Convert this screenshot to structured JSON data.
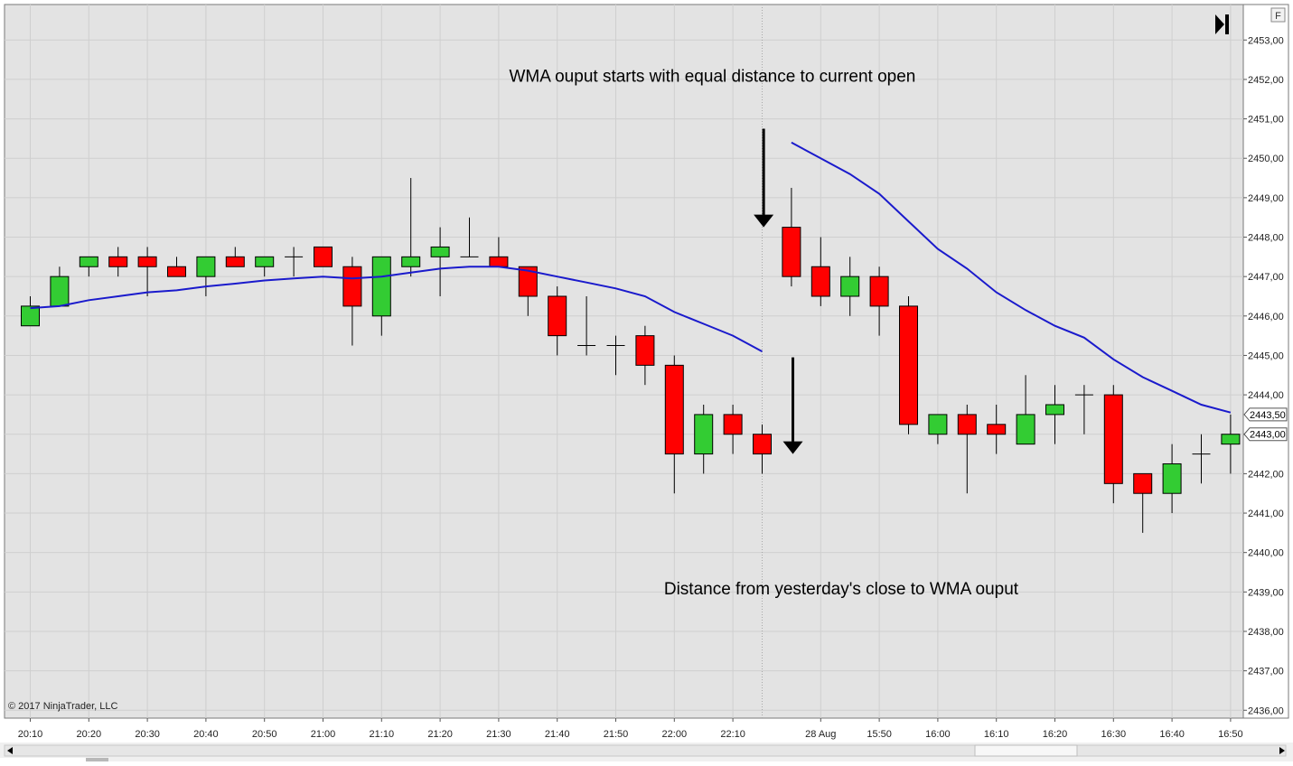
{
  "chart_data": {
    "type": "candlestick",
    "indicator_name": "WMA",
    "copyright": "© 2017 NinjaTrader, LLC",
    "panel_button": "F",
    "y_ticks": [
      "2436,00",
      "2437,00",
      "2438,00",
      "2439,00",
      "2440,00",
      "2441,00",
      "2442,00",
      "2443,00",
      "2444,00",
      "2445,00",
      "2446,00",
      "2447,00",
      "2448,00",
      "2449,00",
      "2450,00",
      "2451,00",
      "2452,00",
      "2453,00"
    ],
    "ylim": [
      2435.8,
      2453.9
    ],
    "x_tick_labels": [
      {
        "label": "20:10",
        "bar": 0
      },
      {
        "label": "20:20",
        "bar": 2
      },
      {
        "label": "20:30",
        "bar": 4
      },
      {
        "label": "20:40",
        "bar": 6
      },
      {
        "label": "20:50",
        "bar": 8
      },
      {
        "label": "21:00",
        "bar": 10
      },
      {
        "label": "21:10",
        "bar": 12
      },
      {
        "label": "21:20",
        "bar": 14
      },
      {
        "label": "21:30",
        "bar": 16
      },
      {
        "label": "21:40",
        "bar": 18
      },
      {
        "label": "21:50",
        "bar": 20
      },
      {
        "label": "22:00",
        "bar": 22
      },
      {
        "label": "22:10",
        "bar": 24
      },
      {
        "label": "28 Aug",
        "bar": 27
      },
      {
        "label": "15:50",
        "bar": 29
      },
      {
        "label": "16:00",
        "bar": 31
      },
      {
        "label": "16:10",
        "bar": 33
      },
      {
        "label": "16:20",
        "bar": 35
      },
      {
        "label": "16:30",
        "bar": 37
      },
      {
        "label": "16:40",
        "bar": 39
      },
      {
        "label": "16:50",
        "bar": 41
      }
    ],
    "session_break_bar": 25,
    "candles": [
      {
        "open": 2445.75,
        "high": 2446.5,
        "low": 2445.75,
        "close": 2446.25
      },
      {
        "open": 2446.25,
        "high": 2447.25,
        "low": 2446.25,
        "close": 2447.0
      },
      {
        "open": 2447.25,
        "high": 2447.5,
        "low": 2447.0,
        "close": 2447.5
      },
      {
        "open": 2447.5,
        "high": 2447.75,
        "low": 2447.0,
        "close": 2447.25
      },
      {
        "open": 2447.5,
        "high": 2447.75,
        "low": 2446.5,
        "close": 2447.25
      },
      {
        "open": 2447.25,
        "high": 2447.5,
        "low": 2447.0,
        "close": 2447.0
      },
      {
        "open": 2447.0,
        "high": 2447.5,
        "low": 2446.5,
        "close": 2447.5
      },
      {
        "open": 2447.5,
        "high": 2447.75,
        "low": 2447.25,
        "close": 2447.25
      },
      {
        "open": 2447.25,
        "high": 2447.5,
        "low": 2447.0,
        "close": 2447.5
      },
      {
        "open": 2447.5,
        "high": 2447.75,
        "low": 2447.0,
        "close": 2447.5
      },
      {
        "open": 2447.75,
        "high": 2447.75,
        "low": 2447.25,
        "close": 2447.25
      },
      {
        "open": 2447.25,
        "high": 2447.5,
        "low": 2445.25,
        "close": 2446.25
      },
      {
        "open": 2446.0,
        "high": 2447.5,
        "low": 2445.5,
        "close": 2447.5
      },
      {
        "open": 2447.25,
        "high": 2449.5,
        "low": 2447.0,
        "close": 2447.5
      },
      {
        "open": 2447.5,
        "high": 2448.25,
        "low": 2446.5,
        "close": 2447.75
      },
      {
        "open": 2447.5,
        "high": 2448.5,
        "low": 2447.5,
        "close": 2447.5
      },
      {
        "open": 2447.5,
        "high": 2448.0,
        "low": 2447.25,
        "close": 2447.25
      },
      {
        "open": 2447.25,
        "high": 2447.25,
        "low": 2446.0,
        "close": 2446.5
      },
      {
        "open": 2446.5,
        "high": 2446.75,
        "low": 2445.0,
        "close": 2445.5
      },
      {
        "open": 2445.25,
        "high": 2446.5,
        "low": 2445.0,
        "close": 2445.25
      },
      {
        "open": 2445.25,
        "high": 2445.5,
        "low": 2444.5,
        "close": 2445.25
      },
      {
        "open": 2445.5,
        "high": 2445.75,
        "low": 2444.25,
        "close": 2444.75
      },
      {
        "open": 2444.75,
        "high": 2445.0,
        "low": 2441.5,
        "close": 2442.5
      },
      {
        "open": 2442.5,
        "high": 2443.75,
        "low": 2442.0,
        "close": 2443.5
      },
      {
        "open": 2443.5,
        "high": 2443.75,
        "low": 2442.5,
        "close": 2443.0
      },
      {
        "open": 2443.0,
        "high": 2443.25,
        "low": 2442.0,
        "close": 2442.5
      },
      {
        "open": 2448.25,
        "high": 2449.25,
        "low": 2446.75,
        "close": 2447.0
      },
      {
        "open": 2447.25,
        "high": 2448.0,
        "low": 2446.25,
        "close": 2446.5
      },
      {
        "open": 2446.5,
        "high": 2447.5,
        "low": 2446.0,
        "close": 2447.0
      },
      {
        "open": 2447.0,
        "high": 2447.25,
        "low": 2445.5,
        "close": 2446.25
      },
      {
        "open": 2446.25,
        "high": 2446.5,
        "low": 2443.0,
        "close": 2443.25
      },
      {
        "open": 2443.0,
        "high": 2443.5,
        "low": 2442.75,
        "close": 2443.5
      },
      {
        "open": 2443.5,
        "high": 2443.75,
        "low": 2441.5,
        "close": 2443.0
      },
      {
        "open": 2443.25,
        "high": 2443.75,
        "low": 2442.5,
        "close": 2443.0
      },
      {
        "open": 2442.75,
        "high": 2444.5,
        "low": 2442.75,
        "close": 2443.5
      },
      {
        "open": 2443.5,
        "high": 2444.25,
        "low": 2442.75,
        "close": 2443.75
      },
      {
        "open": 2444.0,
        "high": 2444.25,
        "low": 2443.0,
        "close": 2444.0
      },
      {
        "open": 2444.0,
        "high": 2444.25,
        "low": 2441.25,
        "close": 2441.75
      },
      {
        "open": 2442.0,
        "high": 2442.0,
        "low": 2440.5,
        "close": 2441.5
      },
      {
        "open": 2441.5,
        "high": 2442.75,
        "low": 2441.0,
        "close": 2442.25
      },
      {
        "open": 2442.5,
        "high": 2443.0,
        "low": 2441.75,
        "close": 2442.5
      },
      {
        "open": 2442.75,
        "high": 2443.5,
        "low": 2442.0,
        "close": 2443.0
      }
    ],
    "wma_segments": [
      {
        "points": [
          [
            0,
            2446.2
          ],
          [
            1,
            2446.25
          ],
          [
            2,
            2446.4
          ],
          [
            3,
            2446.5
          ],
          [
            4,
            2446.6
          ],
          [
            5,
            2446.65
          ],
          [
            6,
            2446.75
          ],
          [
            7,
            2446.82
          ],
          [
            8,
            2446.9
          ],
          [
            9,
            2446.95
          ],
          [
            10,
            2447.0
          ],
          [
            11,
            2446.95
          ],
          [
            12,
            2447.0
          ],
          [
            13,
            2447.1
          ],
          [
            14,
            2447.2
          ],
          [
            15,
            2447.25
          ],
          [
            16,
            2447.25
          ],
          [
            17,
            2447.15
          ],
          [
            18,
            2447.0
          ],
          [
            19,
            2446.85
          ],
          [
            20,
            2446.7
          ],
          [
            21,
            2446.5
          ],
          [
            22,
            2446.1
          ],
          [
            23,
            2445.8
          ],
          [
            24,
            2445.5
          ],
          [
            25,
            2445.1
          ]
        ]
      },
      {
        "points": [
          [
            26,
            2450.4
          ],
          [
            27,
            2450.0
          ],
          [
            28,
            2449.6
          ],
          [
            29,
            2449.1
          ],
          [
            30,
            2448.4
          ],
          [
            31,
            2447.7
          ],
          [
            32,
            2447.2
          ],
          [
            33,
            2446.6
          ],
          [
            34,
            2446.15
          ],
          [
            35,
            2445.75
          ],
          [
            36,
            2445.45
          ],
          [
            37,
            2444.9
          ],
          [
            38,
            2444.45
          ],
          [
            39,
            2444.1
          ],
          [
            40,
            2443.75
          ],
          [
            41,
            2443.55
          ]
        ]
      }
    ],
    "price_markers": [
      {
        "label": "2443,50",
        "value": 2443.5
      },
      {
        "label": "2443,00",
        "value": 2443.0
      }
    ],
    "annotations": [
      {
        "text": "WMA ouput starts with equal distance to current open",
        "price": 2452.1,
        "bar": 23.3
      },
      {
        "text": "Distance from yesterday's close to WMA ouput",
        "price": 2439.1,
        "bar": 27.7
      }
    ],
    "arrows": [
      {
        "bar": 25.05,
        "from": 2450.75,
        "to": 2448.25
      },
      {
        "bar": 26.05,
        "from": 2444.95,
        "to": 2442.5
      }
    ],
    "colors": {
      "up": "#33cc33",
      "down": "#ff0000",
      "wick": "#000000",
      "wma": "#1a1acc",
      "background": "#e3e3e3",
      "grid": "#cfcfcf"
    }
  }
}
